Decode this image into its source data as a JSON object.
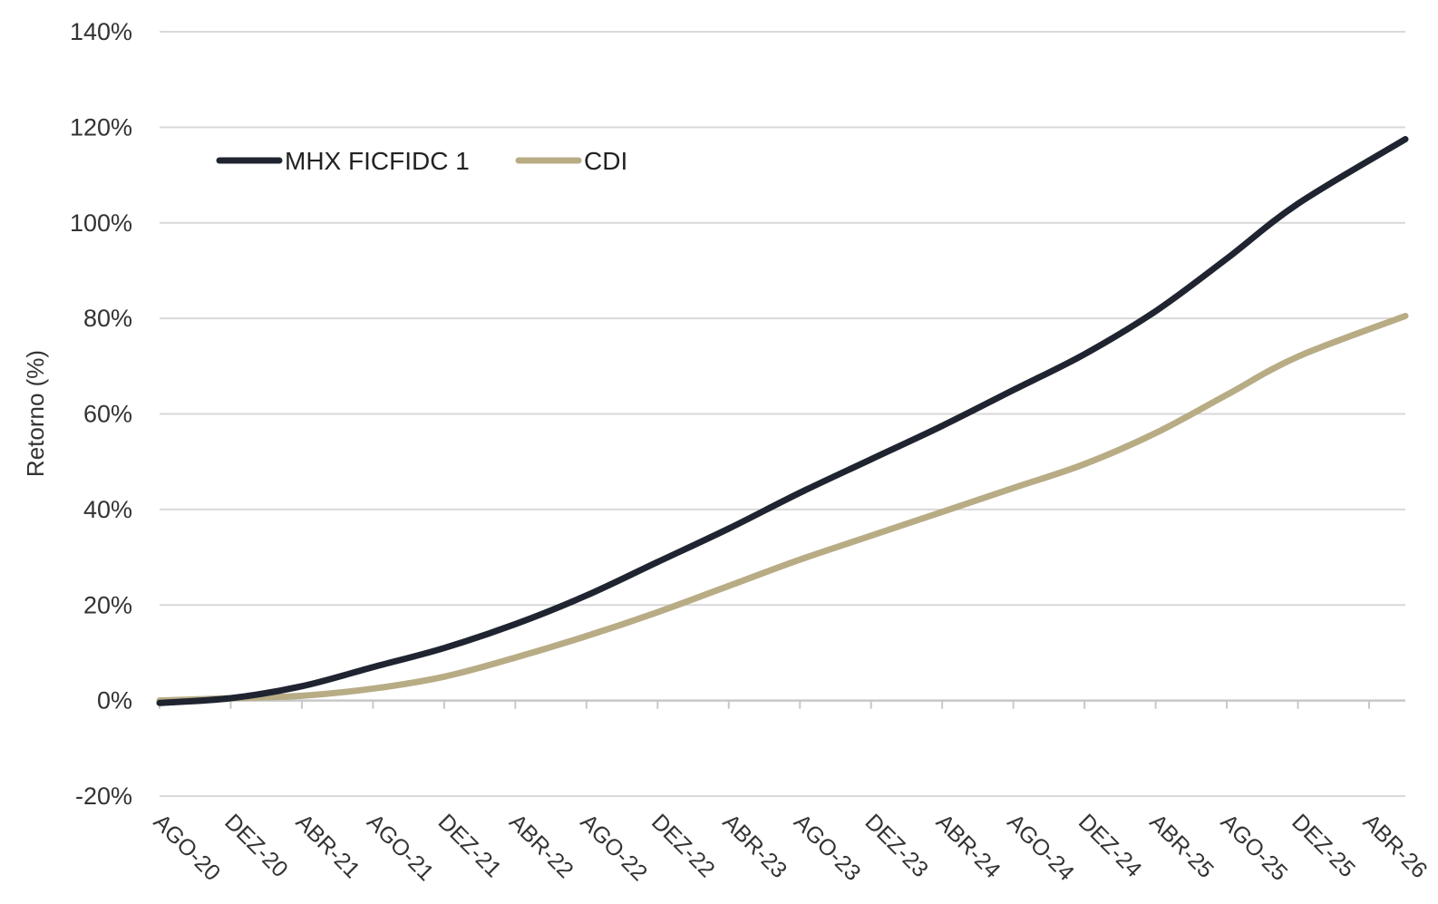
{
  "chart_data": {
    "type": "line",
    "title": "",
    "xlabel": "",
    "ylabel": "Retorno (%)",
    "ylim": [
      -20,
      140
    ],
    "yticks": [
      -20,
      0,
      20,
      40,
      60,
      80,
      100,
      120,
      140
    ],
    "ytick_labels": [
      "-20%",
      "0%",
      "20%",
      "40%",
      "60%",
      "80%",
      "100%",
      "120%",
      "140%"
    ],
    "categories": [
      "AGO-20",
      "DEZ-20",
      "ABR-21",
      "AGO-21",
      "DEZ-21",
      "ABR-22",
      "AGO-22",
      "DEZ-22",
      "ABR-23",
      "AGO-23",
      "DEZ-23",
      "ABR-24",
      "AGO-24",
      "DEZ-24",
      "ABR-25",
      "AGO-25",
      "DEZ-25",
      "ABR-26"
    ],
    "grid": true,
    "legend_position": "top-left",
    "series": [
      {
        "name": "MHX FICFIDC 1",
        "color": "#1f2430",
        "values": [
          -0.5,
          0.5,
          3,
          7,
          11,
          16,
          22,
          29,
          36,
          43.5,
          50.5,
          57.5,
          65,
          72.5,
          81.5,
          92.5,
          104,
          117.5
        ]
      },
      {
        "name": "CDI",
        "color": "#b8ac85",
        "values": [
          0,
          0.5,
          1,
          2.5,
          5,
          9,
          13.5,
          18.5,
          24,
          29.5,
          34.5,
          39.5,
          44.5,
          49.5,
          56,
          64,
          72,
          80.5
        ]
      }
    ]
  }
}
